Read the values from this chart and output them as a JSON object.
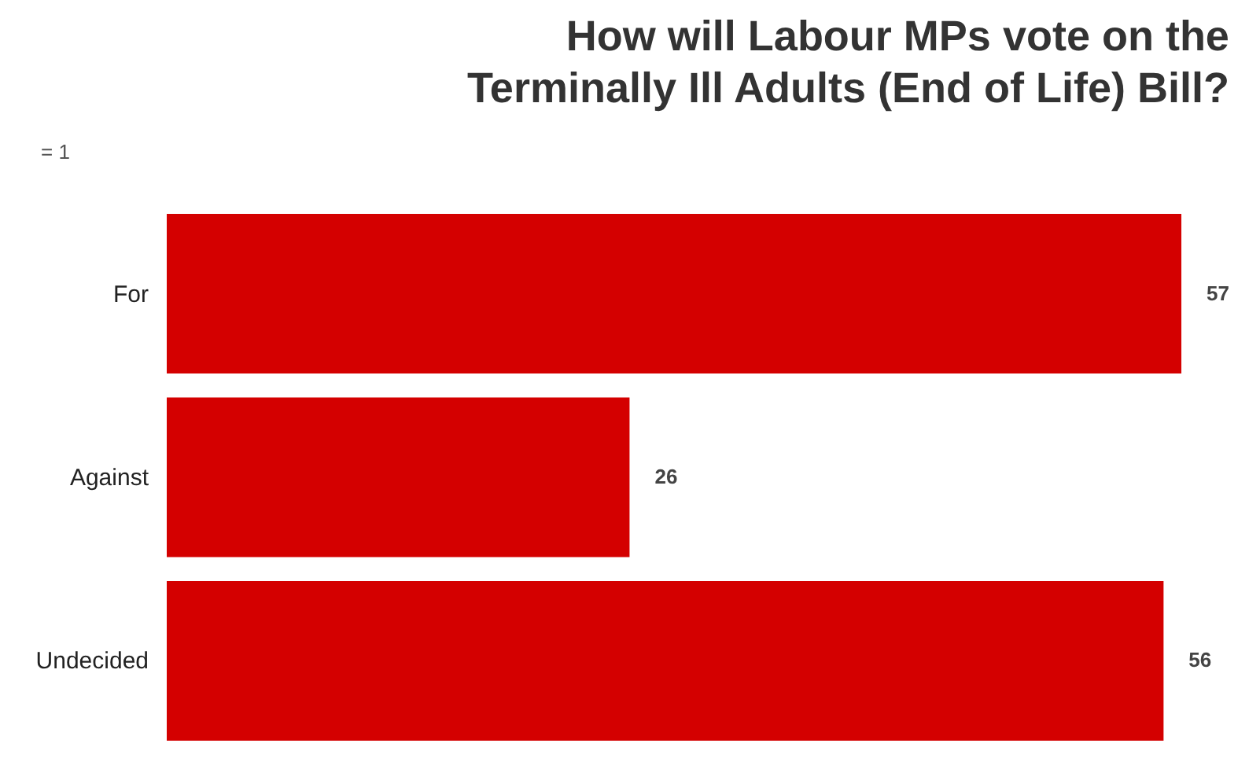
{
  "chart_data": {
    "type": "bar",
    "orientation": "horizontal",
    "title": "How will Labour MPs vote on the Terminally Ill Adults (End of Life) Bill?",
    "categories": [
      "For",
      "Against",
      "Undecided"
    ],
    "values": [
      57,
      26,
      56
    ],
    "color": "#d40000",
    "data_labels": true,
    "tick_labels": "y",
    "annotations": [
      "= 1"
    ]
  }
}
